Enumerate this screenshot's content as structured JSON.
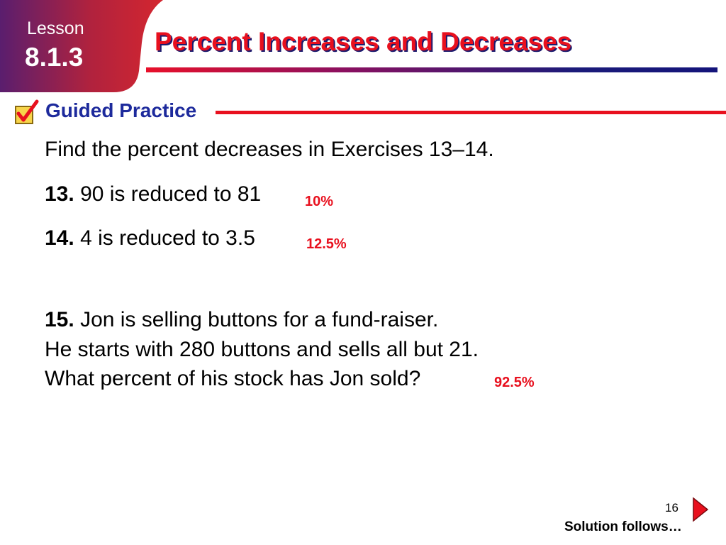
{
  "lesson": {
    "label": "Lesson",
    "number": "8.1.3"
  },
  "title": "Percent Increases and Decreases",
  "section": {
    "title": "Guided Practice",
    "icon": "checkbox-checked-icon"
  },
  "colors": {
    "title_red": "#e8101e",
    "shadow_navy": "#1b1b6e",
    "section_blue": "#1d2a9c",
    "answer_red": "#e8101e",
    "badge_red": "#d4262f",
    "badge_purple": "#5a1e6e"
  },
  "instruction": "Find the percent decreases in Exercises 13–14.",
  "exercises": [
    {
      "number": "13.",
      "text": "90 is reduced to 81",
      "answer": "10%"
    },
    {
      "number": "14.",
      "text": "4 is reduced to 3.5",
      "answer": "12.5%"
    }
  ],
  "problem15": {
    "number": "15.",
    "lines": [
      "Jon is selling buttons for a fund-raiser.",
      "He starts with 280 buttons and sells all but 21.",
      "What percent of his stock has Jon sold?"
    ],
    "answer": "92.5%"
  },
  "footer": {
    "page_number": "16",
    "note": "Solution follows…",
    "next_icon": "next-arrow-icon"
  }
}
